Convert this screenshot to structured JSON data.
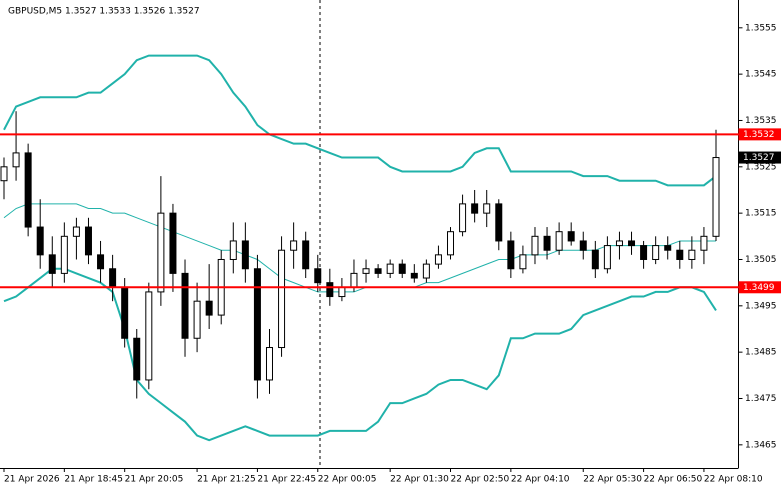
{
  "chart_data": {
    "type": "candlestick",
    "title": "GBPUSD,M5  1.3527 1.3533 1.3526 1.3527",
    "categories": [
      "21 Apr 2026",
      null,
      null,
      null,
      null,
      "21 Apr 18:45",
      null,
      null,
      null,
      null,
      "21 Apr 20:05",
      null,
      null,
      null,
      null,
      null,
      "21 Apr 21:25",
      null,
      null,
      null,
      null,
      "21 Apr 22:45",
      null,
      null,
      null,
      null,
      "22 Apr 00:05",
      null,
      null,
      null,
      null,
      null,
      "22 Apr 01:30",
      null,
      null,
      null,
      null,
      "22 Apr 02:50",
      null,
      null,
      null,
      null,
      "22 Apr 04:10",
      null,
      null,
      null,
      null,
      null,
      "22 Apr 05:30",
      null,
      null,
      null,
      null,
      "22 Apr 06:50",
      null,
      null,
      null,
      null,
      "22 Apr 08:10",
      null
    ],
    "candles": [
      [
        1.3522,
        1.3527,
        1.3518,
        1.3525
      ],
      [
        1.3525,
        1.3537,
        1.3522,
        1.3528
      ],
      [
        1.3528,
        1.353,
        1.351,
        1.3512
      ],
      [
        1.3512,
        1.3518,
        1.3503,
        1.3506
      ],
      [
        1.3506,
        1.351,
        1.3499,
        1.3502
      ],
      [
        1.3502,
        1.3513,
        1.35,
        1.351
      ],
      [
        1.351,
        1.3514,
        1.3505,
        1.3512
      ],
      [
        1.3512,
        1.3514,
        1.3504,
        1.3506
      ],
      [
        1.3506,
        1.3509,
        1.35,
        1.3503
      ],
      [
        1.3503,
        1.3506,
        1.3496,
        1.3499
      ],
      [
        1.3499,
        1.3501,
        1.3486,
        1.3488
      ],
      [
        1.3488,
        1.349,
        1.3475,
        1.3479
      ],
      [
        1.3479,
        1.35,
        1.3477,
        1.3498
      ],
      [
        1.3498,
        1.3523,
        1.3495,
        1.3515
      ],
      [
        1.3515,
        1.3517,
        1.3498,
        1.3502
      ],
      [
        1.3502,
        1.3505,
        1.3484,
        1.3488
      ],
      [
        1.3488,
        1.35,
        1.3485,
        1.3496
      ],
      [
        1.3496,
        1.3504,
        1.349,
        1.3493
      ],
      [
        1.3493,
        1.3507,
        1.3491,
        1.3505
      ],
      [
        1.3505,
        1.3513,
        1.3502,
        1.3509
      ],
      [
        1.3509,
        1.3513,
        1.35,
        1.3503
      ],
      [
        1.3503,
        1.3506,
        1.3475,
        1.3479
      ],
      [
        1.3479,
        1.349,
        1.3476,
        1.3486
      ],
      [
        1.3486,
        1.351,
        1.3484,
        1.3507
      ],
      [
        1.3507,
        1.3513,
        1.3503,
        1.3509
      ],
      [
        1.3509,
        1.3511,
        1.3501,
        1.3503
      ],
      [
        1.3503,
        1.3506,
        1.3498,
        1.35
      ],
      [
        1.35,
        1.3503,
        1.3495,
        1.3497
      ],
      [
        1.3497,
        1.3501,
        1.3496,
        1.3499
      ],
      [
        1.3499,
        1.3505,
        1.3498,
        1.3502
      ],
      [
        1.3502,
        1.3505,
        1.35,
        1.3503
      ],
      [
        1.3503,
        1.3504,
        1.3501,
        1.3502
      ],
      [
        1.3502,
        1.3505,
        1.3501,
        1.3504
      ],
      [
        1.3504,
        1.3505,
        1.3501,
        1.3502
      ],
      [
        1.3502,
        1.3504,
        1.35,
        1.3501
      ],
      [
        1.3501,
        1.3505,
        1.35,
        1.3504
      ],
      [
        1.3504,
        1.3508,
        1.3503,
        1.3506
      ],
      [
        1.3506,
        1.3512,
        1.3505,
        1.3511
      ],
      [
        1.3511,
        1.3519,
        1.351,
        1.3517
      ],
      [
        1.3517,
        1.352,
        1.3513,
        1.3515
      ],
      [
        1.3515,
        1.352,
        1.3512,
        1.3517
      ],
      [
        1.3517,
        1.3518,
        1.3507,
        1.3509
      ],
      [
        1.3509,
        1.3511,
        1.3501,
        1.3503
      ],
      [
        1.3503,
        1.3508,
        1.3502,
        1.3506
      ],
      [
        1.3506,
        1.3512,
        1.3504,
        1.351
      ],
      [
        1.351,
        1.3512,
        1.3505,
        1.3507
      ],
      [
        1.3507,
        1.3513,
        1.3506,
        1.3511
      ],
      [
        1.3511,
        1.3513,
        1.3508,
        1.3509
      ],
      [
        1.3509,
        1.3511,
        1.3505,
        1.3507
      ],
      [
        1.3507,
        1.3509,
        1.3501,
        1.3503
      ],
      [
        1.3503,
        1.351,
        1.3502,
        1.3508
      ],
      [
        1.3508,
        1.3511,
        1.3505,
        1.3509
      ],
      [
        1.3509,
        1.3511,
        1.3506,
        1.3508
      ],
      [
        1.3508,
        1.3509,
        1.3503,
        1.3505
      ],
      [
        1.3505,
        1.351,
        1.3504,
        1.3508
      ],
      [
        1.3508,
        1.351,
        1.3505,
        1.3507
      ],
      [
        1.3507,
        1.3509,
        1.3503,
        1.3505
      ],
      [
        1.3505,
        1.351,
        1.3503,
        1.3507
      ],
      [
        1.3507,
        1.3512,
        1.3504,
        1.351
      ],
      [
        1.351,
        1.3533,
        1.3509,
        1.3527
      ]
    ],
    "bands": {
      "color": "#20b2aa",
      "upper": [
        1.3533,
        1.3538,
        1.3539,
        1.354,
        1.354,
        1.354,
        1.354,
        1.3541,
        1.3541,
        1.3543,
        1.3545,
        1.3548,
        1.3549,
        1.3549,
        1.3549,
        1.3549,
        1.3549,
        1.3548,
        1.3545,
        1.3541,
        1.3538,
        1.3534,
        1.3532,
        1.3531,
        1.353,
        1.353,
        1.3529,
        1.3528,
        1.3527,
        1.3527,
        1.3527,
        1.3527,
        1.3525,
        1.3524,
        1.3524,
        1.3524,
        1.3524,
        1.3524,
        1.3525,
        1.3528,
        1.3529,
        1.3529,
        1.3524,
        1.3524,
        1.3524,
        1.3524,
        1.3524,
        1.3524,
        1.3523,
        1.3523,
        1.3523,
        1.3522,
        1.3522,
        1.3522,
        1.3522,
        1.3521,
        1.3521,
        1.3521,
        1.3521,
        1.3523
      ],
      "middle": [
        1.3514,
        1.3516,
        1.3517,
        1.3517,
        1.3517,
        1.3517,
        1.3517,
        1.3516,
        1.3516,
        1.3515,
        1.3515,
        1.3514,
        1.3513,
        1.3512,
        1.3511,
        1.351,
        1.3509,
        1.3508,
        1.3507,
        1.3507,
        1.3506,
        1.3505,
        1.3503,
        1.3501,
        1.35,
        1.3499,
        1.3498,
        1.3498,
        1.3498,
        1.3498,
        1.3499,
        1.3499,
        1.3499,
        1.3499,
        1.3499,
        1.35,
        1.35,
        1.3501,
        1.3502,
        1.3503,
        1.3504,
        1.3505,
        1.3505,
        1.3506,
        1.3506,
        1.3506,
        1.3507,
        1.3507,
        1.3507,
        1.3507,
        1.3508,
        1.3508,
        1.3508,
        1.3508,
        1.3508,
        1.3508,
        1.3509,
        1.3509,
        1.3509,
        1.3509
      ],
      "lower": [
        1.3496,
        1.3497,
        1.3499,
        1.3501,
        1.3503,
        1.3503,
        1.3502,
        1.3501,
        1.35,
        1.3498,
        1.349,
        1.3479,
        1.3476,
        1.3474,
        1.3472,
        1.347,
        1.3467,
        1.3466,
        1.3467,
        1.3468,
        1.3469,
        1.3468,
        1.3467,
        1.3467,
        1.3467,
        1.3467,
        1.3467,
        1.3468,
        1.3468,
        1.3468,
        1.3468,
        1.347,
        1.3474,
        1.3474,
        1.3475,
        1.3476,
        1.3478,
        1.3479,
        1.3479,
        1.3478,
        1.3477,
        1.348,
        1.3488,
        1.3488,
        1.3489,
        1.3489,
        1.3489,
        1.349,
        1.3493,
        1.3494,
        1.3495,
        1.3496,
        1.3497,
        1.3497,
        1.3498,
        1.3498,
        1.3499,
        1.3499,
        1.3498,
        1.3494
      ]
    },
    "levels": [
      {
        "value": 1.3532,
        "color": "#ff0000"
      },
      {
        "value": 1.3499,
        "color": "#ff0000"
      }
    ],
    "last_price": 1.3527,
    "ylim": [
      1.346,
      1.3561
    ],
    "yticks": [
      1.3555,
      1.3545,
      1.3535,
      1.3525,
      1.3515,
      1.3505,
      1.3495,
      1.3485,
      1.3475,
      1.3465
    ]
  }
}
